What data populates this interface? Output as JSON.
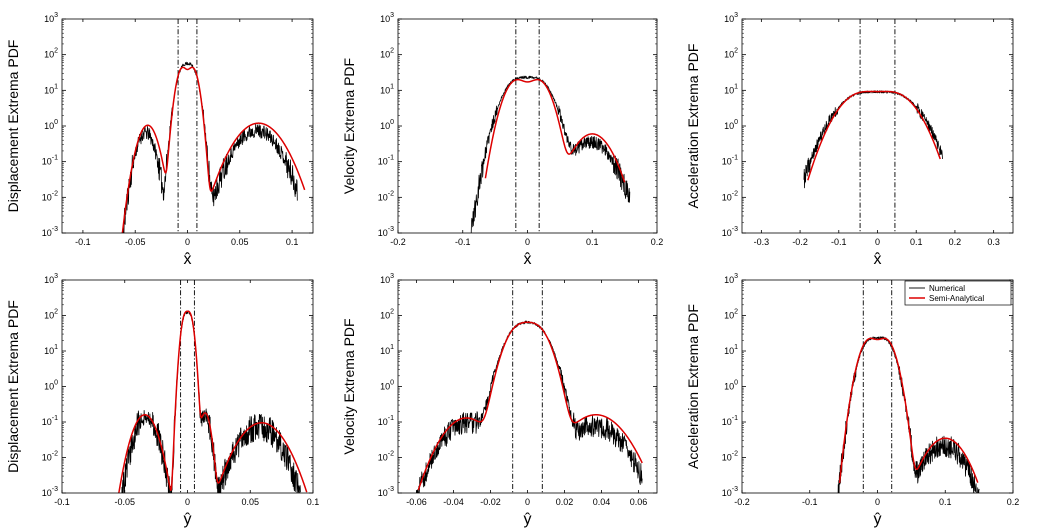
{
  "colors": {
    "numerical": "#000000",
    "semi_analytical": "#dd0000",
    "threshold": "#000000",
    "axes": "#000000"
  },
  "chart_data": [
    {
      "type": "line",
      "row": 0,
      "col": 0,
      "yscale": "log",
      "xlabel": "x̂",
      "ylabel": "Displacement Extrema PDF",
      "xlim": [
        -0.12,
        0.12
      ],
      "xticks": [
        -0.1,
        -0.05,
        0,
        0.05,
        0.1
      ],
      "xtick_labels": [
        "-0.1",
        "-0.05",
        "0",
        "0.05",
        "0.1"
      ],
      "ylim": [
        0.001,
        1000
      ],
      "yticks": [
        -3,
        -2,
        -1,
        0,
        1,
        2,
        3
      ],
      "vlines": [
        -0.009,
        0.009
      ],
      "series": [
        {
          "name": "Numerical",
          "style": "noisy",
          "domain": [
            -0.07,
            0.105
          ],
          "seed": 11,
          "amp": 0.45,
          "density": 260,
          "components": [
            [
              0.65,
              -0.04,
              0.006
            ],
            [
              0.75,
              0.066,
              0.014
            ],
            [
              42,
              -0.004,
              0.0045
            ],
            [
              42,
              0.004,
              0.0045
            ]
          ]
        },
        {
          "name": "Semi-Analytical",
          "style": "smooth",
          "domain": [
            -0.07,
            0.112
          ],
          "components": [
            [
              1.05,
              -0.038,
              0.0065
            ],
            [
              1.2,
              0.068,
              0.015
            ],
            [
              42,
              -0.005,
              0.004
            ],
            [
              42,
              0.005,
              0.004
            ]
          ]
        }
      ]
    },
    {
      "type": "line",
      "row": 0,
      "col": 1,
      "yscale": "log",
      "xlabel": "x̂",
      "ylabel": "Velocity Extrema PDF",
      "xlim": [
        -0.2,
        0.2
      ],
      "xticks": [
        -0.2,
        -0.1,
        0,
        0.1,
        0.2
      ],
      "xtick_labels": [
        "-0.2",
        "-0.1",
        "0",
        "0.1",
        "0.2"
      ],
      "ylim": [
        0.001,
        1000
      ],
      "yticks": [
        -3,
        -2,
        -1,
        0,
        1,
        2,
        3
      ],
      "vlines": [
        -0.018,
        0.018
      ],
      "series": [
        {
          "name": "Numerical",
          "style": "noisy",
          "domain": [
            -0.105,
            0.158
          ],
          "seed": 23,
          "amp": 0.4,
          "density": 260,
          "components": [
            [
              0.35,
              0.098,
              0.022
            ],
            [
              19,
              -0.016,
              0.016
            ],
            [
              19,
              0.016,
              0.016
            ]
          ]
        },
        {
          "name": "Semi-Analytical",
          "style": "smooth",
          "domain": [
            -0.065,
            0.15
          ],
          "components": [
            [
              0.6,
              0.1,
              0.02
            ],
            [
              19,
              -0.017,
              0.0135
            ],
            [
              19,
              0.017,
              0.0135
            ]
          ]
        }
      ]
    },
    {
      "type": "line",
      "row": 0,
      "col": 2,
      "yscale": "log",
      "xlabel": "x̂",
      "ylabel": "Acceleration Extrema PDF",
      "xlim": [
        -0.35,
        0.35
      ],
      "xticks": [
        -0.3,
        -0.2,
        -0.1,
        0,
        0.1,
        0.2,
        0.3
      ],
      "xtick_labels": [
        "-0.3",
        "-0.2",
        "-0.1",
        "0",
        "0.1",
        "0.2",
        "0.3"
      ],
      "ylim": [
        0.001,
        1000
      ],
      "yticks": [
        -3,
        -2,
        -1,
        0,
        1,
        2,
        3
      ],
      "vlines": [
        -0.045,
        0.045
      ],
      "series": [
        {
          "name": "Numerical",
          "style": "noisy",
          "domain": [
            -0.19,
            0.168
          ],
          "seed": 37,
          "amp": 0.35,
          "density": 260,
          "components": [
            [
              7.5,
              -0.044,
              0.044
            ],
            [
              7.5,
              0.044,
              0.044
            ]
          ]
        },
        {
          "name": "Semi-Analytical",
          "style": "smooth",
          "domain": [
            -0.18,
            0.162
          ],
          "components": [
            [
              8,
              -0.043,
              0.041
            ],
            [
              8,
              0.043,
              0.041
            ]
          ]
        }
      ]
    },
    {
      "type": "line",
      "row": 1,
      "col": 0,
      "yscale": "log",
      "xlabel": "ŷ",
      "ylabel": "Displacement Extrema PDF",
      "xlim": [
        -0.1,
        0.1
      ],
      "xticks": [
        -0.1,
        -0.05,
        0,
        0.05,
        0.1
      ],
      "xtick_labels": [
        "-0.1",
        "-0.05",
        "0",
        "0.05",
        "0.1"
      ],
      "ylim": [
        0.001,
        1000
      ],
      "yticks": [
        -3,
        -2,
        -1,
        0,
        1,
        2,
        3
      ],
      "vlines": [
        -0.0055,
        0.0055
      ],
      "series": [
        {
          "name": "Numerical",
          "style": "noisy",
          "domain": [
            -0.06,
            0.09
          ],
          "seed": 53,
          "amp": 0.5,
          "density": 280,
          "components": [
            [
              0.14,
              -0.033,
              0.006
            ],
            [
              0.15,
              0.014,
              0.003
            ],
            [
              0.075,
              0.057,
              0.011
            ],
            [
              95,
              -0.002,
              0.0022
            ],
            [
              95,
              0.002,
              0.0022
            ]
          ]
        },
        {
          "name": "Semi-Analytical",
          "style": "smooth",
          "domain": [
            -0.058,
            0.095
          ],
          "components": [
            [
              0.16,
              -0.034,
              0.0065
            ],
            [
              0.18,
              0.014,
              0.003
            ],
            [
              0.095,
              0.059,
              0.012
            ],
            [
              100,
              -0.002,
              0.0022
            ],
            [
              100,
              0.002,
              0.0022
            ]
          ]
        }
      ]
    },
    {
      "type": "line",
      "row": 1,
      "col": 1,
      "yscale": "log",
      "xlabel": "ŷ",
      "ylabel": "Velocity Extrema PDF",
      "xlim": [
        -0.07,
        0.07
      ],
      "xticks": [
        -0.06,
        -0.04,
        -0.02,
        0,
        0.02,
        0.04,
        0.06
      ],
      "xtick_labels": [
        "-0.06",
        "-0.04",
        "-0.02",
        "0",
        "0.02",
        "0.04",
        "0.06"
      ],
      "ylim": [
        0.001,
        1000
      ],
      "yticks": [
        -3,
        -2,
        -1,
        0,
        1,
        2,
        3
      ],
      "vlines": [
        -0.008,
        0.008
      ],
      "series": [
        {
          "name": "Numerical",
          "style": "noisy",
          "domain": [
            -0.06,
            0.062
          ],
          "seed": 71,
          "amp": 0.4,
          "density": 280,
          "components": [
            [
              0.1,
              -0.032,
              0.009
            ],
            [
              0.08,
              0.036,
              0.01
            ],
            [
              45,
              -0.0045,
              0.0055
            ],
            [
              45,
              0.0045,
              0.0055
            ]
          ]
        },
        {
          "name": "Semi-Analytical",
          "style": "smooth",
          "domain": [
            -0.059,
            0.062
          ],
          "components": [
            [
              0.13,
              -0.033,
              0.0085
            ],
            [
              0.16,
              0.037,
              0.01
            ],
            [
              47,
              -0.0045,
              0.0052
            ],
            [
              47,
              0.0045,
              0.0052
            ]
          ]
        }
      ]
    },
    {
      "type": "line",
      "row": 1,
      "col": 2,
      "yscale": "log",
      "xlabel": "ŷ",
      "ylabel": "Acceleration Extrema PDF",
      "xlim": [
        -0.2,
        0.2
      ],
      "xticks": [
        -0.2,
        -0.1,
        0,
        0.1,
        0.2
      ],
      "xtick_labels": [
        "-0.2",
        "-0.1",
        "0",
        "0.1",
        "0.2"
      ],
      "ylim": [
        0.001,
        1000
      ],
      "yticks": [
        -3,
        -2,
        -1,
        0,
        1,
        2,
        3
      ],
      "vlines": [
        -0.021,
        0.021
      ],
      "series": [
        {
          "name": "Numerical",
          "style": "noisy",
          "domain": [
            -0.065,
            0.15
          ],
          "seed": 89,
          "amp": 0.4,
          "density": 260,
          "components": [
            [
              0.022,
              0.098,
              0.02
            ],
            [
              20,
              -0.011,
              0.0105
            ],
            [
              20,
              0.011,
              0.0105
            ]
          ]
        },
        {
          "name": "Semi-Analytical",
          "style": "smooth",
          "domain": [
            -0.056,
            0.148
          ],
          "components": [
            [
              0.035,
              0.1,
              0.02
            ],
            [
              21,
              -0.012,
              0.0102
            ],
            [
              21,
              0.012,
              0.0102
            ]
          ]
        }
      ],
      "legend": {
        "position": "top-right",
        "entries": [
          "Numerical",
          "Semi-Analytical"
        ]
      }
    }
  ]
}
